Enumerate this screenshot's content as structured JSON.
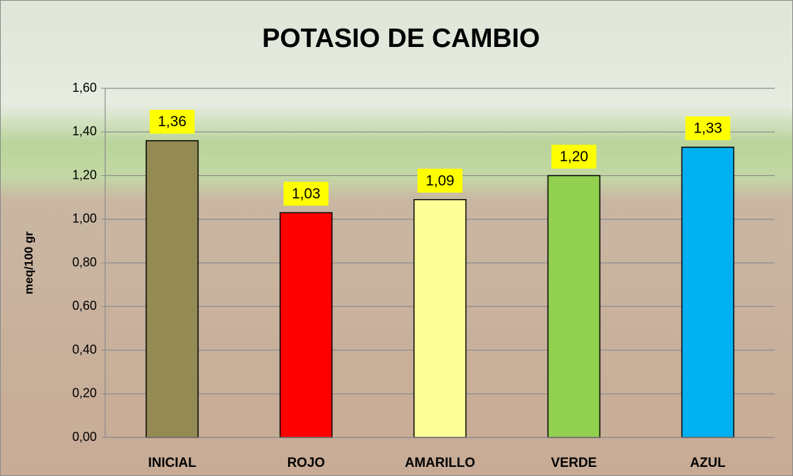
{
  "chart_data": {
    "type": "bar",
    "title": "POTASIO DE CAMBIO",
    "y_label": "meq/100 gr",
    "categories": [
      "INICIAL",
      "ROJO",
      "AMARILLO",
      "VERDE",
      "AZUL"
    ],
    "values": [
      1.36,
      1.03,
      1.09,
      1.2,
      1.33
    ],
    "value_labels": [
      "1,36",
      "1,03",
      "1,09",
      "1,20",
      "1,33"
    ],
    "colors": [
      "#948a54",
      "#ff0000",
      "#ffff99",
      "#92d050",
      "#00b0f0"
    ],
    "ylim": [
      0,
      1.6
    ],
    "yticks": [
      {
        "value": 0,
        "label": "0,00"
      },
      {
        "value": 0.2,
        "label": "0,20"
      },
      {
        "value": 0.4,
        "label": "0,40"
      },
      {
        "value": 0.6,
        "label": "0,60"
      },
      {
        "value": 0.8,
        "label": "0,80"
      },
      {
        "value": 1.0,
        "label": "1,00"
      },
      {
        "value": 1.2,
        "label": "1,20"
      },
      {
        "value": 1.4,
        "label": "1,40"
      },
      {
        "value": 1.6,
        "label": "1,60"
      }
    ],
    "grid": true
  }
}
